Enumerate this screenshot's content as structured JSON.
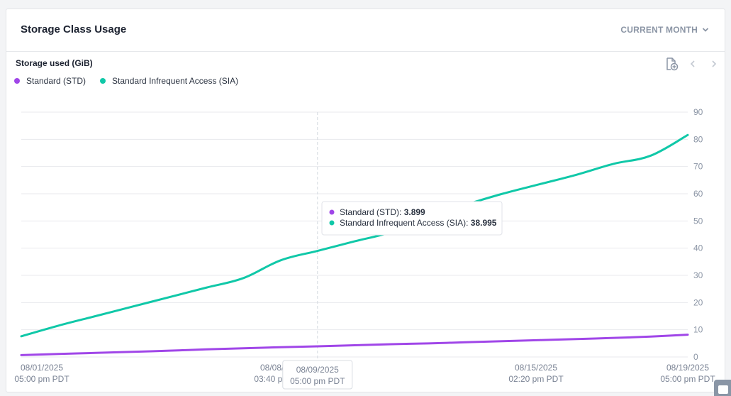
{
  "card": {
    "title": "Storage Class Usage",
    "period_label": "CURRENT MONTH"
  },
  "chart_data": {
    "type": "line",
    "title": "Storage used (GiB)",
    "x_ticks": [
      {
        "date": "08/01/2025",
        "time": "05:00 pm PDT"
      },
      {
        "date": "08/08/2025",
        "time": "03:40 pm PDT"
      },
      {
        "date": "08/15/2025",
        "time": "02:20 pm PDT"
      },
      {
        "date": "08/19/2025",
        "time": "05:00 pm PDT"
      }
    ],
    "y_ticks": [
      0,
      10,
      20,
      30,
      40,
      50,
      60,
      70,
      80,
      90
    ],
    "ylim": [
      0,
      90
    ],
    "grid": true,
    "legend_position": "top-left",
    "x_dates": [
      "08/01/2025",
      "08/02/2025",
      "08/03/2025",
      "08/04/2025",
      "08/05/2025",
      "08/06/2025",
      "08/07/2025",
      "08/08/2025",
      "08/09/2025",
      "08/10/2025",
      "08/11/2025",
      "08/12/2025",
      "08/13/2025",
      "08/14/2025",
      "08/15/2025",
      "08/16/2025",
      "08/17/2025",
      "08/18/2025",
      "08/19/2025"
    ],
    "series": [
      {
        "name": "Standard (STD)",
        "color": "#a046e8",
        "values": [
          0.7,
          1.1,
          1.5,
          1.9,
          2.3,
          2.8,
          3.2,
          3.6,
          3.899,
          4.3,
          4.7,
          5.0,
          5.4,
          5.8,
          6.2,
          6.6,
          7.0,
          7.5,
          8.2
        ]
      },
      {
        "name": "Standard Infrequent Access (SIA)",
        "color": "#10c8a8",
        "values": [
          7.6,
          11.5,
          15.0,
          18.5,
          22.0,
          25.5,
          29.0,
          35.5,
          38.995,
          42.5,
          46.0,
          52.0,
          56.0,
          60.0,
          63.5,
          67.0,
          71.0,
          74.0,
          81.6
        ]
      }
    ],
    "crosshair_date": "08/09/2025",
    "crosshair_time": "05:00 pm PDT",
    "tooltip": [
      {
        "name": "Standard (STD)",
        "value": "3.899",
        "color": "#a046e8"
      },
      {
        "name": "Standard Infrequent Access (SIA)",
        "value": "38.995",
        "color": "#10c8a8"
      }
    ]
  },
  "icons": {
    "export": "file-export-icon",
    "prev": "chevron-left-icon",
    "next": "chevron-right-icon",
    "period": "chevron-down-icon"
  },
  "colors": {
    "grid": "#e8eaed",
    "axis_text": "#8b95a5",
    "title": "#1c2230"
  }
}
